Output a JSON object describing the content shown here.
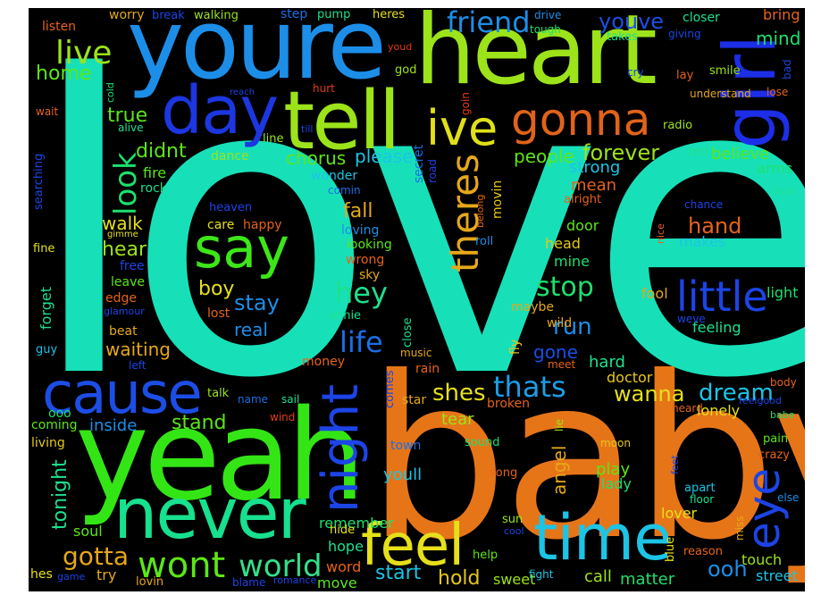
{
  "words": [
    {
      "text": "love",
      "color": "#17e0b9"
    },
    {
      "text": "baby",
      "color": "#e67518"
    },
    {
      "text": "yeah",
      "color": "#34e515"
    },
    {
      "text": "youre",
      "color": "#1c8ee8"
    },
    {
      "text": "heart",
      "color": "#9ce31a"
    },
    {
      "text": "tell",
      "color": "#9ce31a"
    },
    {
      "text": "girl",
      "color": "#1c2ee6"
    },
    {
      "text": "day",
      "color": "#1c36e0"
    },
    {
      "text": "ive",
      "color": "#e0e01a"
    },
    {
      "text": "gonna",
      "color": "#e0631a"
    },
    {
      "text": "never",
      "color": "#17e08e"
    },
    {
      "text": "cause",
      "color": "#1c4ee6"
    },
    {
      "text": "time",
      "color": "#1cc4e6"
    },
    {
      "text": "feel",
      "color": "#e6e01a"
    },
    {
      "text": "say",
      "color": "#3ce617"
    },
    {
      "text": "night",
      "color": "#1c44e6"
    },
    {
      "text": "eye",
      "color": "#1c44e6"
    },
    {
      "text": "little",
      "color": "#1c44e6"
    },
    {
      "text": "wont",
      "color": "#5ce617"
    },
    {
      "text": "world",
      "color": "#34e08a"
    },
    {
      "text": "theres",
      "color": "#e6a81a"
    },
    {
      "text": "look",
      "color": "#1de06e"
    },
    {
      "text": "friend",
      "color": "#1c8ee8"
    },
    {
      "text": "youve",
      "color": "#1c4ee6"
    },
    {
      "text": "live",
      "color": "#9ce31a"
    },
    {
      "text": "thats",
      "color": "#1c9ee6"
    },
    {
      "text": "hey",
      "color": "#1de08e"
    },
    {
      "text": "life",
      "color": "#1c6ee6"
    },
    {
      "text": "shes",
      "color": "#e6e01a"
    },
    {
      "text": "dream",
      "color": "#1cc4e6"
    },
    {
      "text": "wanna",
      "color": "#e6e01a"
    },
    {
      "text": "stop",
      "color": "#1de06e"
    },
    {
      "text": "run",
      "color": "#1c8ee8"
    },
    {
      "text": "hand",
      "color": "#e6631a"
    },
    {
      "text": "gotta",
      "color": "#e6a81a"
    },
    {
      "text": "forever",
      "color": "#9ce31a"
    },
    {
      "text": "stay",
      "color": "#1c8ee8"
    },
    {
      "text": "hold",
      "color": "#e6c81a"
    },
    {
      "text": "start",
      "color": "#1cc4e6"
    },
    {
      "text": "ooh",
      "color": "#1c8ee8"
    },
    {
      "text": "home",
      "color": "#5ce617"
    },
    {
      "text": "true",
      "color": "#5ce617"
    },
    {
      "text": "didnt",
      "color": "#5ce617"
    },
    {
      "text": "walk",
      "color": "#e6e01a"
    },
    {
      "text": "hear",
      "color": "#9ce31a"
    },
    {
      "text": "boy",
      "color": "#e6e01a"
    },
    {
      "text": "stand",
      "color": "#5ce617"
    },
    {
      "text": "tonight",
      "color": "#1de08e"
    },
    {
      "text": "chorus",
      "color": "#5ce617"
    },
    {
      "text": "please",
      "color": "#1cc4e6"
    },
    {
      "text": "fall",
      "color": "#e6a81a"
    },
    {
      "text": "people",
      "color": "#5ce617"
    },
    {
      "text": "strong",
      "color": "#1cc4e6"
    },
    {
      "text": "mean",
      "color": "#e6631a"
    },
    {
      "text": "believe",
      "color": "#5ce617"
    },
    {
      "text": "mind",
      "color": "#1de06e"
    },
    {
      "text": "bring",
      "color": "#e6631a"
    },
    {
      "text": "waiting",
      "color": "#e6a81a"
    },
    {
      "text": "real",
      "color": "#1c8ee8"
    },
    {
      "text": "gone",
      "color": "#1c4ee6"
    },
    {
      "text": "angel",
      "color": "#e6a81a"
    },
    {
      "text": "tear",
      "color": "#9ce31a"
    },
    {
      "text": "inside",
      "color": "#1c8ee8"
    },
    {
      "text": "soul",
      "color": "#5ce617"
    },
    {
      "text": "try",
      "color": "#e6a81a"
    },
    {
      "text": "remember",
      "color": "#1de06e"
    },
    {
      "text": "hope",
      "color": "#1de08e"
    },
    {
      "text": "word",
      "color": "#e6631a"
    },
    {
      "text": "move",
      "color": "#5ce617"
    },
    {
      "text": "sweet",
      "color": "#9ce31a"
    },
    {
      "text": "call",
      "color": "#9ce31a"
    },
    {
      "text": "matter",
      "color": "#1de06e"
    },
    {
      "text": "street",
      "color": "#1cc4e6"
    },
    {
      "text": "touch",
      "color": "#9ce31a"
    },
    {
      "text": "lover",
      "color": "#e6e01a"
    },
    {
      "text": "play",
      "color": "#5ce617"
    },
    {
      "text": "lady",
      "color": "#1de06e"
    },
    {
      "text": "doctor",
      "color": "#e6c81a"
    },
    {
      "text": "hard",
      "color": "#1de08e"
    },
    {
      "text": "feeling",
      "color": "#1de08e"
    },
    {
      "text": "lonely",
      "color": "#e6e01a"
    },
    {
      "text": "fool",
      "color": "#e6a81a"
    },
    {
      "text": "light",
      "color": "#1de06e"
    },
    {
      "text": "arms",
      "color": "#1de06e"
    },
    {
      "text": "makes",
      "color": "#1cc4e6"
    },
    {
      "text": "head",
      "color": "#e6c81a"
    },
    {
      "text": "mine",
      "color": "#1de06e"
    },
    {
      "text": "door",
      "color": "#5ce617"
    },
    {
      "text": "wild",
      "color": "#e6a81a"
    },
    {
      "text": "maybe",
      "color": "#e6a81a"
    },
    {
      "text": "sky",
      "color": "#e6a81a"
    },
    {
      "text": "wrong",
      "color": "#e6631a"
    },
    {
      "text": "loving",
      "color": "#1c8ee8"
    },
    {
      "text": "looking",
      "color": "#5ce617"
    },
    {
      "text": "happy",
      "color": "#e6631a"
    },
    {
      "text": "care",
      "color": "#e6e01a"
    },
    {
      "text": "heaven",
      "color": "#1c44e6"
    },
    {
      "text": "dance",
      "color": "#9ce31a"
    },
    {
      "text": "fire",
      "color": "#5ce617"
    },
    {
      "text": "rock",
      "color": "#1de08e"
    },
    {
      "text": "free",
      "color": "#1c44e6"
    },
    {
      "text": "leave",
      "color": "#5ce617"
    },
    {
      "text": "edge",
      "color": "#e6631a"
    },
    {
      "text": "lost",
      "color": "#e6631a"
    },
    {
      "text": "beat",
      "color": "#e6a81a"
    },
    {
      "text": "left",
      "color": "#1c44e6"
    },
    {
      "text": "money",
      "color": "#e6631a"
    },
    {
      "text": "talk",
      "color": "#9ce31a"
    },
    {
      "text": "name",
      "color": "#1c6ee6"
    },
    {
      "text": "sail",
      "color": "#1de08e"
    },
    {
      "text": "wind",
      "color": "#e63a1a"
    },
    {
      "text": "coming",
      "color": "#5ce617"
    },
    {
      "text": "living",
      "color": "#e6c81a"
    },
    {
      "text": "ooo",
      "color": "#1de06e"
    },
    {
      "text": "guy",
      "color": "#1cc4e6"
    },
    {
      "text": "fine",
      "color": "#e6e01a"
    },
    {
      "text": "forget",
      "color": "#1de08e"
    },
    {
      "text": "searching",
      "color": "#1c44e6"
    },
    {
      "text": "wait",
      "color": "#e6631a"
    },
    {
      "text": "listen",
      "color": "#e6631a"
    },
    {
      "text": "worry",
      "color": "#e6a81a"
    },
    {
      "text": "break",
      "color": "#1c44e6"
    },
    {
      "text": "walking",
      "color": "#9ce31a"
    },
    {
      "text": "step",
      "color": "#1c6ee6"
    },
    {
      "text": "pump",
      "color": "#1de08e"
    },
    {
      "text": "heres",
      "color": "#e6e01a"
    },
    {
      "text": "youd",
      "color": "#e63a1a"
    },
    {
      "text": "god",
      "color": "#9ce31a"
    },
    {
      "text": "hurt",
      "color": "#e63a1a"
    },
    {
      "text": "till",
      "color": "#1c44e6"
    },
    {
      "text": "line",
      "color": "#9ce31a"
    },
    {
      "text": "alive",
      "color": "#1de08e"
    },
    {
      "text": "cold",
      "color": "#1de06e"
    },
    {
      "text": "drive",
      "color": "#1c8ee8"
    },
    {
      "text": "tough",
      "color": "#1de06e"
    },
    {
      "text": "closer",
      "color": "#1de08e"
    },
    {
      "text": "takes",
      "color": "#1de08e"
    },
    {
      "text": "giving",
      "color": "#1c44e6"
    },
    {
      "text": "cry",
      "color": "#1c44e6"
    },
    {
      "text": "lay",
      "color": "#e6631a"
    },
    {
      "text": "smile",
      "color": "#9ce31a"
    },
    {
      "text": "bad",
      "color": "#1c44e6"
    },
    {
      "text": "lose",
      "color": "#e6631a"
    },
    {
      "text": "understand",
      "color": "#e6a81a"
    },
    {
      "text": "radio",
      "color": "#9ce31a"
    },
    {
      "text": "red",
      "color": "#1de08e"
    },
    {
      "text": "hoo",
      "color": "#1de08e"
    },
    {
      "text": "chance",
      "color": "#1c44e6"
    },
    {
      "text": "nice",
      "color": "#e6631a"
    },
    {
      "text": "alright",
      "color": "#e6631a"
    },
    {
      "text": "belong",
      "color": "#e6631a"
    },
    {
      "text": "movin",
      "color": "#e6c81a"
    },
    {
      "text": "road",
      "color": "#1c44e6"
    },
    {
      "text": "secret",
      "color": "#1c6ee6"
    },
    {
      "text": "goin",
      "color": "#e63a1a"
    },
    {
      "text": "wonder",
      "color": "#1cc4e6"
    },
    {
      "text": "comin",
      "color": "#1c6ee6"
    },
    {
      "text": "roll",
      "color": "#1c8ee8"
    },
    {
      "text": "annie",
      "color": "#1de08e"
    },
    {
      "text": "close",
      "color": "#1de08e"
    },
    {
      "text": "music",
      "color": "#e6a81a"
    },
    {
      "text": "fly",
      "color": "#e6c81a"
    },
    {
      "text": "meet",
      "color": "#e6631a"
    },
    {
      "text": "weve",
      "color": "#1c44e6"
    },
    {
      "text": "body",
      "color": "#e6631a"
    },
    {
      "text": "feelgood",
      "color": "#1c44e6"
    },
    {
      "text": "babe",
      "color": "#1de06e"
    },
    {
      "text": "heard",
      "color": "#e6631a"
    },
    {
      "text": "pain",
      "color": "#5ce617"
    },
    {
      "text": "crazy",
      "color": "#e6631a"
    },
    {
      "text": "else",
      "color": "#1c8ee8"
    },
    {
      "text": "miss",
      "color": "#e6a81a"
    },
    {
      "text": "feet",
      "color": "#1c44e6"
    },
    {
      "text": "apart",
      "color": "#1cc4e6"
    },
    {
      "text": "floor",
      "color": "#1de08e"
    },
    {
      "text": "moon",
      "color": "#e6c81a"
    },
    {
      "text": "reason",
      "color": "#e6631a"
    },
    {
      "text": "blue",
      "color": "#e6e01a"
    },
    {
      "text": "fight",
      "color": "#1cc4e6"
    },
    {
      "text": "help",
      "color": "#5ce617"
    },
    {
      "text": "sun",
      "color": "#9ce31a"
    },
    {
      "text": "cool",
      "color": "#1c44e6"
    },
    {
      "text": "song",
      "color": "#e6631a"
    },
    {
      "text": "sound",
      "color": "#1de06e"
    },
    {
      "text": "youll",
      "color": "#1cc4e6"
    },
    {
      "text": "town",
      "color": "#1c6ee6"
    },
    {
      "text": "lie",
      "color": "#9ce31a"
    },
    {
      "text": "broken",
      "color": "#e6631a"
    },
    {
      "text": "comes",
      "color": "#1c44e6"
    },
    {
      "text": "rain",
      "color": "#e6631a"
    },
    {
      "text": "star",
      "color": "#e6a81a"
    },
    {
      "text": "hes",
      "color": "#e6e01a"
    },
    {
      "text": "game",
      "color": "#1c44e6"
    },
    {
      "text": "lovin",
      "color": "#e6a81a"
    },
    {
      "text": "blame",
      "color": "#1c44e6"
    },
    {
      "text": "romance",
      "color": "#1c44e6"
    },
    {
      "text": "hide",
      "color": "#e6e01a"
    },
    {
      "text": "reach",
      "color": "#1c44e6"
    },
    {
      "text": "gimme",
      "color": "#e6e01a"
    },
    {
      "text": "glamour",
      "color": "#1c44e6"
    }
  ]
}
